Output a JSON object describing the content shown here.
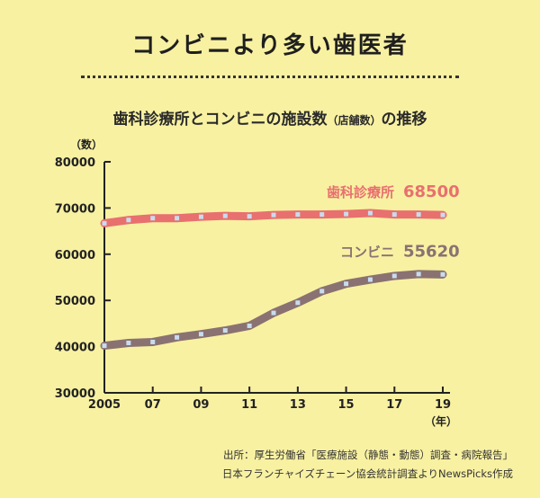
{
  "title": "コンビニより多い歯医者",
  "subtitle_main": "歯科診療所とコンビニの施設数",
  "subtitle_note": "（店舗数）",
  "subtitle_tail": "の推移",
  "y_unit": "（数）",
  "x_unit": "（年）",
  "source_line1": "出所：厚生労働省「医療施設（静態・動態）調査・病院報告」",
  "source_line2": "日本フランチャイズチェーン協会統計調査よりNewsPicks作成",
  "colors": {
    "background": "#f8f1a2",
    "dental": "#e8706f",
    "convenience": "#8a7272",
    "marker": "#c8dcf0"
  },
  "chart_data": {
    "type": "line",
    "x": [
      2005,
      2006,
      2007,
      2008,
      2009,
      2010,
      2011,
      2012,
      2013,
      2014,
      2015,
      2016,
      2017,
      2018,
      2019
    ],
    "x_tick_labels": [
      "2005",
      "07",
      "09",
      "11",
      "13",
      "15",
      "17",
      "19"
    ],
    "x_tick_values": [
      2005,
      2007,
      2009,
      2011,
      2013,
      2015,
      2017,
      2019
    ],
    "y_ticks": [
      30000,
      40000,
      50000,
      60000,
      70000,
      80000
    ],
    "y_tick_labels": [
      "30000",
      "40000",
      "50000",
      "60000",
      "70000",
      "80000"
    ],
    "ylim": [
      30000,
      80000
    ],
    "xlim": [
      2005,
      2019
    ],
    "grid": false,
    "series": [
      {
        "name": "歯科診療所",
        "end_label": "68500",
        "values": [
          66700,
          67400,
          67800,
          67800,
          68100,
          68300,
          68200,
          68500,
          68600,
          68600,
          68700,
          68900,
          68600,
          68600,
          68500
        ]
      },
      {
        "name": "コンビニ",
        "end_label": "55620",
        "values": [
          40200,
          40800,
          41000,
          42000,
          42700,
          43500,
          44500,
          47300,
          49500,
          52000,
          53600,
          54500,
          55300,
          55700,
          55620
        ]
      }
    ]
  }
}
